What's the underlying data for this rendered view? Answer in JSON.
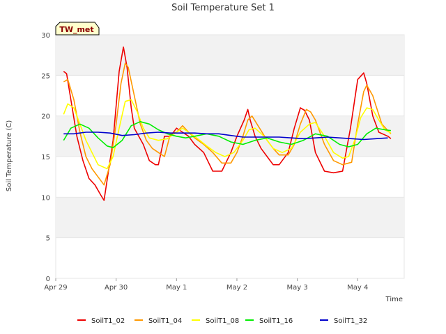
{
  "chart_data": {
    "type": "line",
    "title": "Soil Temperature Set 1",
    "xlabel": "Time",
    "ylabel": "Soil Temperature (C)",
    "badge": "TW_met",
    "ylim": [
      0,
      30
    ],
    "yticks": [
      0,
      5,
      10,
      15,
      20,
      25,
      30
    ],
    "xlim": [
      0,
      5.77
    ],
    "xticks": [
      {
        "value": 0,
        "label": "Apr 29"
      },
      {
        "value": 1,
        "label": "Apr 30"
      },
      {
        "value": 2,
        "label": "May 1"
      },
      {
        "value": 3,
        "label": "May 2"
      },
      {
        "value": 4,
        "label": "May 3"
      },
      {
        "value": 5,
        "label": "May 4"
      }
    ],
    "x_units": "days since Apr 29",
    "grid": "horizontal bands",
    "legend_position": "bottom",
    "series": [
      {
        "name": "SoilT1_02",
        "color": "#ee0000",
        "x": [
          0.13,
          0.18,
          0.25,
          0.35,
          0.45,
          0.55,
          0.65,
          0.75,
          0.8,
          0.95,
          1.05,
          1.12,
          1.18,
          1.25,
          1.3,
          1.45,
          1.55,
          1.65,
          1.7,
          1.8,
          1.9,
          2.0,
          2.1,
          2.2,
          2.3,
          2.45,
          2.6,
          2.75,
          2.9,
          3.0,
          3.12,
          3.18,
          3.22,
          3.3,
          3.4,
          3.5,
          3.6,
          3.7,
          3.85,
          3.95,
          4.05,
          4.12,
          4.2,
          4.3,
          4.45,
          4.6,
          4.75,
          4.88,
          5.0,
          5.1,
          5.15,
          5.25,
          5.35,
          5.5,
          5.55
        ],
        "y": [
          25.5,
          25.2,
          22,
          17.5,
          14.5,
          12.3,
          11.5,
          10.2,
          9.6,
          17,
          25.5,
          28.5,
          26,
          21,
          18.5,
          16.5,
          14.5,
          14,
          14,
          17.5,
          17.5,
          18.5,
          18,
          17.5,
          16.5,
          15.5,
          13.2,
          13.2,
          15.5,
          17.5,
          19.5,
          20.8,
          19.5,
          17.5,
          16,
          15,
          14,
          14,
          15.5,
          18.5,
          21,
          20.7,
          19.5,
          15.5,
          13.2,
          13,
          13.2,
          18.5,
          24.5,
          25.3,
          24,
          20,
          18,
          17.5,
          17.2
        ]
      },
      {
        "name": "SoilT1_04",
        "color": "#ff9900",
        "x": [
          0.13,
          0.2,
          0.3,
          0.4,
          0.5,
          0.6,
          0.7,
          0.8,
          0.9,
          1.0,
          1.08,
          1.15,
          1.2,
          1.3,
          1.4,
          1.5,
          1.6,
          1.7,
          1.8,
          1.9,
          2.0,
          2.1,
          2.2,
          2.3,
          2.45,
          2.6,
          2.75,
          2.9,
          3.0,
          3.1,
          3.18,
          3.25,
          3.35,
          3.5,
          3.6,
          3.7,
          3.85,
          3.95,
          4.05,
          4.15,
          4.22,
          4.3,
          4.45,
          4.6,
          4.75,
          4.9,
          5.0,
          5.1,
          5.15,
          5.25,
          5.4,
          5.55
        ],
        "y": [
          24.2,
          24.5,
          22,
          18,
          15,
          13.5,
          12.5,
          11.5,
          14,
          19,
          24,
          26.5,
          26,
          22.5,
          19,
          17,
          16,
          15.5,
          15,
          17.8,
          18,
          18.8,
          18,
          17.3,
          16.5,
          15.5,
          14.2,
          14.2,
          15.5,
          17.5,
          19.5,
          20,
          18.8,
          17,
          16,
          15.2,
          15.2,
          16.5,
          19,
          20.8,
          20.5,
          19.5,
          16.5,
          14.5,
          14,
          14.3,
          19,
          23,
          23.8,
          22.5,
          19,
          17.8
        ]
      },
      {
        "name": "SoilT1_08",
        "color": "#ffff00",
        "x": [
          0.13,
          0.2,
          0.3,
          0.4,
          0.5,
          0.6,
          0.7,
          0.85,
          0.95,
          1.05,
          1.15,
          1.25,
          1.35,
          1.45,
          1.55,
          1.7,
          1.85,
          2.0,
          2.1,
          2.2,
          2.35,
          2.5,
          2.65,
          2.8,
          2.95,
          3.1,
          3.2,
          3.3,
          3.45,
          3.6,
          3.75,
          3.9,
          4.05,
          4.2,
          4.3,
          4.45,
          4.6,
          4.75,
          4.85,
          4.95,
          5.05,
          5.15,
          5.25,
          5.35,
          5.45,
          5.55
        ],
        "y": [
          20.2,
          21.5,
          21,
          19,
          17,
          15.5,
          14,
          13.5,
          15,
          18.5,
          21.8,
          22,
          20.5,
          18.5,
          17.3,
          17,
          17.2,
          18,
          18.5,
          18,
          17.2,
          16.3,
          15.5,
          15,
          15.5,
          17,
          18.3,
          18.5,
          17.5,
          16,
          15.5,
          16,
          18,
          19,
          19.2,
          17.5,
          15.5,
          14.8,
          15,
          17,
          19.8,
          21,
          20.8,
          19.5,
          18.3,
          17.9
        ]
      },
      {
        "name": "SoilT1_16",
        "color": "#00ee00",
        "x": [
          0.13,
          0.25,
          0.4,
          0.55,
          0.7,
          0.85,
          0.95,
          1.1,
          1.25,
          1.4,
          1.55,
          1.7,
          1.85,
          2.0,
          2.15,
          2.3,
          2.5,
          2.7,
          2.9,
          3.1,
          3.3,
          3.5,
          3.7,
          3.9,
          4.1,
          4.3,
          4.5,
          4.7,
          4.85,
          5.0,
          5.15,
          5.3,
          5.45,
          5.55
        ],
        "y": [
          17,
          18.5,
          19,
          18.5,
          17.3,
          16.3,
          16.1,
          17,
          18.8,
          19.3,
          19,
          18.3,
          17.8,
          17.5,
          17.3,
          17.5,
          17.8,
          17.5,
          16.8,
          16.5,
          17,
          17.3,
          16.8,
          16.5,
          17,
          17.8,
          17.5,
          16.5,
          16.2,
          16.5,
          17.8,
          18.5,
          18.3,
          18.2
        ]
      },
      {
        "name": "SoilT1_32",
        "color": "#0000cc",
        "x": [
          0.13,
          0.3,
          0.5,
          0.7,
          0.9,
          1.1,
          1.3,
          1.5,
          1.7,
          1.9,
          2.1,
          2.3,
          2.5,
          2.7,
          2.9,
          3.1,
          3.3,
          3.5,
          3.7,
          3.9,
          4.1,
          4.3,
          4.5,
          4.7,
          4.9,
          5.1,
          5.3,
          5.5
        ],
        "y": [
          17.8,
          17.8,
          18,
          18,
          17.9,
          17.6,
          17.7,
          17.9,
          18,
          17.9,
          17.9,
          17.9,
          17.8,
          17.8,
          17.6,
          17.4,
          17.4,
          17.4,
          17.4,
          17.3,
          17.2,
          17.3,
          17.4,
          17.3,
          17.2,
          17.1,
          17.2,
          17.3
        ]
      }
    ]
  }
}
